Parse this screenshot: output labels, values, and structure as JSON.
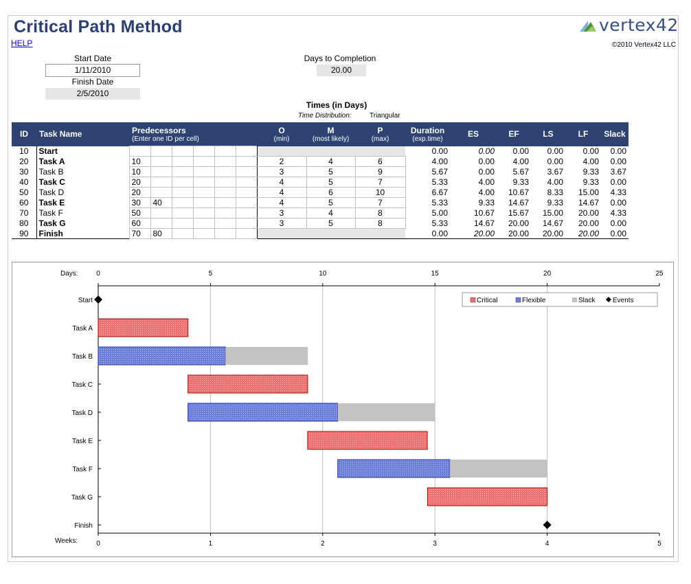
{
  "header": {
    "title": "Critical Path Method",
    "help": "HELP",
    "logo": "vertex42",
    "copyright": "©2010 Vertex42 LLC"
  },
  "inputs": {
    "start_date_label": "Start Date",
    "start_date": "1/11/2010",
    "finish_date_label": "Finish Date",
    "finish_date": "2/5/2010",
    "days_label": "Days to Completion",
    "days_value": "20.00"
  },
  "times": {
    "title": "Times (in Days)",
    "dist_label": "Time Distribution:",
    "dist_value": "Triangular"
  },
  "table": {
    "headers": {
      "id": "ID",
      "name": "Task Name",
      "pred": "Predecessors",
      "pred_sub": "(Enter one ID per cell)",
      "o": "O",
      "o_sub": "(min)",
      "m": "M",
      "m_sub": "(most likely)",
      "p": "P",
      "p_sub": "(max)",
      "dur": "Duration",
      "dur_sub": "(exp.time)",
      "es": "ES",
      "ef": "EF",
      "ls": "LS",
      "lf": "LF",
      "slack": "Slack"
    },
    "rows": [
      {
        "id": "10",
        "name": "Start",
        "pred": [
          "",
          "",
          "",
          "",
          "",
          ""
        ],
        "o": "",
        "m": "",
        "p": "",
        "dur": "0.00",
        "es": "0.00",
        "ef": "0.00",
        "ls": "0.00",
        "lf": "0.00",
        "slack": "0.00"
      },
      {
        "id": "20",
        "name": "Task A",
        "pred": [
          "10",
          "",
          "",
          "",
          "",
          ""
        ],
        "o": "2",
        "m": "4",
        "p": "6",
        "dur": "4.00",
        "es": "0.00",
        "ef": "4.00",
        "ls": "0.00",
        "lf": "4.00",
        "slack": "0.00"
      },
      {
        "id": "30",
        "name": "Task B",
        "pred": [
          "10",
          "",
          "",
          "",
          "",
          ""
        ],
        "o": "3",
        "m": "5",
        "p": "9",
        "dur": "5.67",
        "es": "0.00",
        "ef": "5.67",
        "ls": "3.67",
        "lf": "9.33",
        "slack": "3.67"
      },
      {
        "id": "40",
        "name": "Task C",
        "pred": [
          "20",
          "",
          "",
          "",
          "",
          ""
        ],
        "o": "4",
        "m": "5",
        "p": "7",
        "dur": "5.33",
        "es": "4.00",
        "ef": "9.33",
        "ls": "4.00",
        "lf": "9.33",
        "slack": "0.00"
      },
      {
        "id": "50",
        "name": "Task D",
        "pred": [
          "20",
          "",
          "",
          "",
          "",
          ""
        ],
        "o": "4",
        "m": "6",
        "p": "10",
        "dur": "6.67",
        "es": "4.00",
        "ef": "10.67",
        "ls": "8.33",
        "lf": "15.00",
        "slack": "4.33"
      },
      {
        "id": "60",
        "name": "Task E",
        "pred": [
          "30",
          "40",
          "",
          "",
          "",
          ""
        ],
        "o": "4",
        "m": "5",
        "p": "7",
        "dur": "5.33",
        "es": "9.33",
        "ef": "14.67",
        "ls": "9.33",
        "lf": "14.67",
        "slack": "0.00"
      },
      {
        "id": "70",
        "name": "Task F",
        "pred": [
          "50",
          "",
          "",
          "",
          "",
          ""
        ],
        "o": "3",
        "m": "4",
        "p": "8",
        "dur": "5.00",
        "es": "10.67",
        "ef": "15.67",
        "ls": "15.00",
        "lf": "20.00",
        "slack": "4.33"
      },
      {
        "id": "80",
        "name": "Task G",
        "pred": [
          "60",
          "",
          "",
          "",
          "",
          ""
        ],
        "o": "3",
        "m": "5",
        "p": "8",
        "dur": "5.33",
        "es": "14.67",
        "ef": "20.00",
        "ls": "14.67",
        "lf": "20.00",
        "slack": "0.00"
      },
      {
        "id": "90",
        "name": "Finish",
        "pred": [
          "70",
          "80",
          "",
          "",
          "",
          ""
        ],
        "o": "",
        "m": "",
        "p": "",
        "dur": "0.00",
        "es": "20.00",
        "ef": "20.00",
        "ls": "20.00",
        "lf": "20.00",
        "slack": "0.00"
      }
    ]
  },
  "colors": {
    "header_bg": "#2e4372",
    "title": "#2b3f73",
    "critical": "#f07070",
    "flexible": "#6b7ee0",
    "slack": "#c3c3c3",
    "event": "#000000"
  },
  "chart_data": {
    "type": "bar",
    "orientation": "horizontal-gantt",
    "days_label": "Days:",
    "weeks_label": "Weeks:",
    "xlim": [
      0,
      25
    ],
    "days_ticks": [
      "0",
      "5",
      "10",
      "15",
      "20",
      "25"
    ],
    "weeks_ticks": [
      "0",
      "1",
      "2",
      "3",
      "4",
      "5"
    ],
    "grid": true,
    "legend_position": "top-right",
    "legend": [
      {
        "key": "critical",
        "label": "Critical"
      },
      {
        "key": "flexible",
        "label": "Flexible"
      },
      {
        "key": "slack",
        "label": "Slack"
      },
      {
        "key": "event",
        "label": "Events"
      }
    ],
    "tasks": [
      {
        "name": "Start",
        "kind": "event",
        "start": 0,
        "duration": 0,
        "slack": 0
      },
      {
        "name": "Task A",
        "kind": "critical",
        "start": 0,
        "duration": 4.0,
        "slack": 0
      },
      {
        "name": "Task B",
        "kind": "flexible",
        "start": 0,
        "duration": 5.67,
        "slack": 3.67
      },
      {
        "name": "Task C",
        "kind": "critical",
        "start": 4.0,
        "duration": 5.33,
        "slack": 0
      },
      {
        "name": "Task D",
        "kind": "flexible",
        "start": 4.0,
        "duration": 6.67,
        "slack": 4.33
      },
      {
        "name": "Task E",
        "kind": "critical",
        "start": 9.33,
        "duration": 5.33,
        "slack": 0
      },
      {
        "name": "Task F",
        "kind": "flexible",
        "start": 10.67,
        "duration": 5.0,
        "slack": 4.33
      },
      {
        "name": "Task G",
        "kind": "critical",
        "start": 14.67,
        "duration": 5.33,
        "slack": 0
      },
      {
        "name": "Finish",
        "kind": "event",
        "start": 20,
        "duration": 0,
        "slack": 0
      }
    ]
  }
}
